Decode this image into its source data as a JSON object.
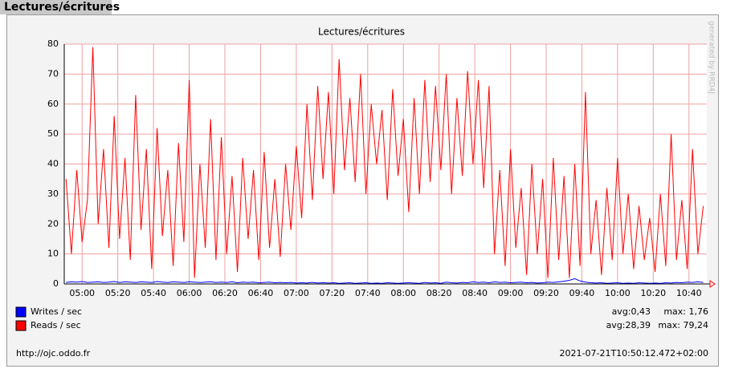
{
  "page_title": "Lectures/écritures",
  "watermark": "generated by RRD4J",
  "footer": {
    "url": "http://ojc.oddo.fr",
    "timestamp": "2021-07-21T10:50:12.472+02:00"
  },
  "chart_data": {
    "type": "line",
    "title": "Lectures/écritures",
    "xlim": [
      "04:50",
      "10:50"
    ],
    "xticks": [
      "05:00",
      "05:20",
      "05:40",
      "06:00",
      "06:20",
      "06:40",
      "07:00",
      "07:20",
      "07:40",
      "08:00",
      "08:20",
      "08:40",
      "09:00",
      "09:20",
      "09:40",
      "10:00",
      "10:20",
      "10:40"
    ],
    "ylim": [
      0,
      80
    ],
    "yticks": [
      0,
      10,
      20,
      30,
      40,
      50,
      60,
      70,
      80
    ],
    "grid": true,
    "x": [
      "04:51",
      "04:54",
      "04:57",
      "05:00",
      "05:03",
      "05:06",
      "05:09",
      "05:12",
      "05:15",
      "05:18",
      "05:21",
      "05:24",
      "05:27",
      "05:30",
      "05:33",
      "05:36",
      "05:39",
      "05:42",
      "05:45",
      "05:48",
      "05:51",
      "05:54",
      "05:57",
      "06:00",
      "06:03",
      "06:06",
      "06:09",
      "06:12",
      "06:15",
      "06:18",
      "06:21",
      "06:24",
      "06:27",
      "06:30",
      "06:33",
      "06:36",
      "06:39",
      "06:42",
      "06:45",
      "06:48",
      "06:51",
      "06:54",
      "06:57",
      "07:00",
      "07:03",
      "07:06",
      "07:09",
      "07:12",
      "07:15",
      "07:18",
      "07:21",
      "07:24",
      "07:27",
      "07:30",
      "07:33",
      "07:36",
      "07:39",
      "07:42",
      "07:45",
      "07:48",
      "07:51",
      "07:54",
      "07:57",
      "08:00",
      "08:03",
      "08:06",
      "08:09",
      "08:12",
      "08:15",
      "08:18",
      "08:21",
      "08:24",
      "08:27",
      "08:30",
      "08:33",
      "08:36",
      "08:39",
      "08:42",
      "08:45",
      "08:48",
      "08:51",
      "08:54",
      "08:57",
      "09:00",
      "09:03",
      "09:06",
      "09:09",
      "09:12",
      "09:15",
      "09:18",
      "09:21",
      "09:24",
      "09:27",
      "09:30",
      "09:33",
      "09:36",
      "09:39",
      "09:42",
      "09:45",
      "09:48",
      "09:51",
      "09:54",
      "09:57",
      "10:00",
      "10:03",
      "10:06",
      "10:09",
      "10:12",
      "10:15",
      "10:18",
      "10:21",
      "10:24",
      "10:27",
      "10:30",
      "10:33",
      "10:36",
      "10:39",
      "10:42",
      "10:45",
      "10:48"
    ],
    "series": [
      {
        "name": "Writes / sec",
        "color": "#0000ff",
        "avg_label": "avg:0,43",
        "max_label": "max: 1,76",
        "values": [
          0.5,
          0.7,
          0.6,
          0.8,
          0.5,
          0.6,
          0.7,
          0.5,
          0.6,
          0.8,
          0.5,
          0.7,
          0.6,
          0.5,
          0.7,
          0.6,
          0.5,
          0.8,
          0.6,
          0.5,
          0.7,
          0.6,
          0.5,
          0.7,
          0.6,
          0.5,
          0.6,
          0.7,
          0.5,
          0.6,
          0.5,
          0.7,
          0.4,
          0.6,
          0.5,
          0.6,
          0.4,
          0.5,
          0.6,
          0.4,
          0.5,
          0.4,
          0.5,
          0.3,
          0.4,
          0.3,
          0.5,
          0.3,
          0.4,
          0.3,
          0.4,
          0.2,
          0.3,
          0.4,
          0.2,
          0.3,
          0.4,
          0.2,
          0.3,
          0.2,
          0.4,
          0.3,
          0.2,
          0.3,
          0.4,
          0.3,
          0.2,
          0.5,
          0.3,
          0.4,
          0.2,
          0.6,
          0.4,
          0.3,
          0.5,
          0.4,
          0.7,
          0.5,
          0.6,
          0.4,
          0.7,
          0.5,
          0.6,
          0.4,
          0.5,
          0.6,
          0.4,
          0.5,
          0.3,
          0.4,
          0.6,
          0.5,
          0.7,
          0.9,
          1.2,
          1.76,
          1.0,
          0.6,
          0.4,
          0.3,
          0.4,
          0.2,
          0.3,
          0.4,
          0.2,
          0.3,
          0.2,
          0.4,
          0.3,
          0.2,
          0.3,
          0.2,
          0.4,
          0.3,
          0.5,
          0.4,
          0.6,
          0.5,
          0.7,
          0.5
        ]
      },
      {
        "name": "Reads / sec",
        "color": "#ff0000",
        "avg_label": "avg:28,39",
        "max_label": "max: 79,24",
        "values": [
          35,
          10,
          38,
          14,
          28,
          79,
          20,
          45,
          12,
          56,
          15,
          42,
          8,
          63,
          18,
          45,
          5,
          52,
          16,
          38,
          6,
          47,
          14,
          68,
          2,
          40,
          12,
          55,
          8,
          49,
          10,
          36,
          4,
          42,
          15,
          38,
          8,
          44,
          12,
          35,
          9,
          40,
          18,
          46,
          22,
          60,
          28,
          66,
          35,
          64,
          30,
          75,
          38,
          62,
          34,
          70,
          30,
          60,
          40,
          58,
          28,
          65,
          36,
          55,
          24,
          62,
          30,
          68,
          34,
          66,
          38,
          70,
          30,
          62,
          36,
          71,
          40,
          68,
          32,
          66,
          10,
          38,
          6,
          45,
          12,
          32,
          3,
          40,
          10,
          35,
          2,
          42,
          8,
          36,
          2,
          40,
          6,
          64,
          10,
          28,
          3,
          32,
          8,
          42,
          10,
          30,
          5,
          26,
          8,
          22,
          4,
          30,
          6,
          50,
          8,
          28,
          5,
          45,
          10,
          26
        ]
      }
    ]
  }
}
